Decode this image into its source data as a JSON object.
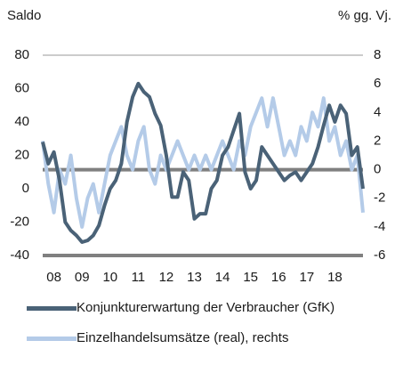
{
  "chart_data": {
    "type": "line",
    "y_label": "Saldo",
    "y2_label": "% gg. Vj.",
    "x": [
      2007.6,
      2007.8,
      2008,
      2008.2,
      2008.4,
      2008.6,
      2008.8,
      2009,
      2009.2,
      2009.4,
      2009.6,
      2009.8,
      2010,
      2010.2,
      2010.4,
      2010.6,
      2010.8,
      2011,
      2011.2,
      2011.4,
      2011.6,
      2011.8,
      2012,
      2012.2,
      2012.4,
      2012.6,
      2012.8,
      2013,
      2013.2,
      2013.4,
      2013.6,
      2013.8,
      2014,
      2014.2,
      2014.4,
      2014.6,
      2014.8,
      2015,
      2015.2,
      2015.4,
      2015.6,
      2015.8,
      2016,
      2016.2,
      2016.4,
      2016.6,
      2016.8,
      2017,
      2017.2,
      2017.4,
      2017.6,
      2017.8,
      2018,
      2018.2,
      2018.4,
      2018.6,
      2018.8,
      2019
    ],
    "series": [
      {
        "name": "Konjunkturerwartung der Verbraucher (GfK)",
        "color": "#4a6277",
        "axis": "y",
        "values": [
          28,
          15,
          22,
          5,
          -20,
          -25,
          -28,
          -32,
          -31,
          -28,
          -22,
          -10,
          0,
          5,
          15,
          40,
          55,
          63,
          58,
          55,
          45,
          38,
          20,
          -5,
          -5,
          10,
          5,
          -18,
          -15,
          -15,
          0,
          5,
          20,
          25,
          35,
          45,
          10,
          0,
          5,
          25,
          20,
          15,
          10,
          5,
          8,
          10,
          5,
          10,
          15,
          25,
          38,
          50,
          40,
          50,
          45,
          20,
          25,
          0
        ]
      },
      {
        "name": "Einzelhandelsumsätze (real), rechts",
        "color": "#b4cbe8",
        "axis": "y2",
        "values": [
          2,
          -1,
          -3,
          0,
          -1,
          1,
          -2,
          -4,
          -2,
          -1,
          -3,
          -1,
          1,
          2,
          3,
          1,
          0,
          2,
          3,
          0,
          -1,
          1,
          0,
          1,
          2,
          1,
          0,
          1,
          0,
          1,
          0,
          1,
          2,
          1,
          0,
          2,
          1,
          3,
          4,
          5,
          3,
          5,
          3,
          1,
          2,
          1,
          3,
          2,
          4,
          3,
          5,
          2,
          3,
          1,
          2,
          0,
          1,
          -3
        ]
      }
    ],
    "xlim": [
      2007.6,
      2019
    ],
    "xticks": [
      {
        "value": 2008,
        "label": "08"
      },
      {
        "value": 2009,
        "label": "09"
      },
      {
        "value": 2010,
        "label": "10"
      },
      {
        "value": 2011,
        "label": "11"
      },
      {
        "value": 2012,
        "label": "12"
      },
      {
        "value": 2013,
        "label": "13"
      },
      {
        "value": 2014,
        "label": "14"
      },
      {
        "value": 2015,
        "label": "15"
      },
      {
        "value": 2016,
        "label": "16"
      },
      {
        "value": 2017,
        "label": "17"
      },
      {
        "value": 2018,
        "label": "18"
      }
    ],
    "ylim": [
      -40,
      80
    ],
    "yticks": [
      -40,
      -20,
      0,
      20,
      40,
      60,
      80
    ],
    "y2lim": [
      -6,
      8
    ],
    "y2ticks": [
      -6,
      -4,
      -2,
      0,
      2,
      4,
      6,
      8
    ]
  }
}
